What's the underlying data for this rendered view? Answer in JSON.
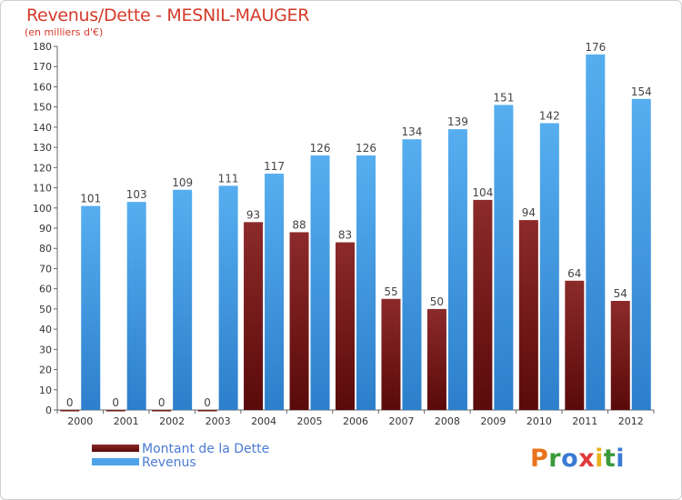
{
  "chart_data": {
    "type": "bar",
    "title": "Revenus/Dette - MESNIL-MAUGER",
    "subtitle": "(en milliers d'€)",
    "categories": [
      "2000",
      "2001",
      "2002",
      "2003",
      "2004",
      "2005",
      "2006",
      "2007",
      "2008",
      "2009",
      "2010",
      "2011",
      "2012"
    ],
    "series": [
      {
        "name": "Montant de la Dette",
        "color": "#7a1a1a",
        "values": [
          0,
          0,
          0,
          0,
          93,
          88,
          83,
          55,
          50,
          104,
          94,
          64,
          54
        ]
      },
      {
        "name": "Revenus",
        "color": "#4da3e8",
        "values": [
          101,
          103,
          109,
          111,
          117,
          126,
          126,
          134,
          139,
          151,
          142,
          176,
          154
        ]
      }
    ],
    "ylim": [
      0,
      180
    ],
    "yticks": [
      0,
      10,
      20,
      30,
      40,
      50,
      60,
      70,
      80,
      90,
      100,
      110,
      120,
      130,
      140,
      150,
      160,
      170,
      180
    ],
    "grid": false,
    "legend": "bottom-left"
  },
  "branding": {
    "logo_text": "Proxiti",
    "letter_colors": [
      "#e8731c",
      "#3a9a3a",
      "#3a7bd5",
      "#e03a3a",
      "#e8b21c",
      "#3a9a3a",
      "#3a7bd5"
    ]
  }
}
